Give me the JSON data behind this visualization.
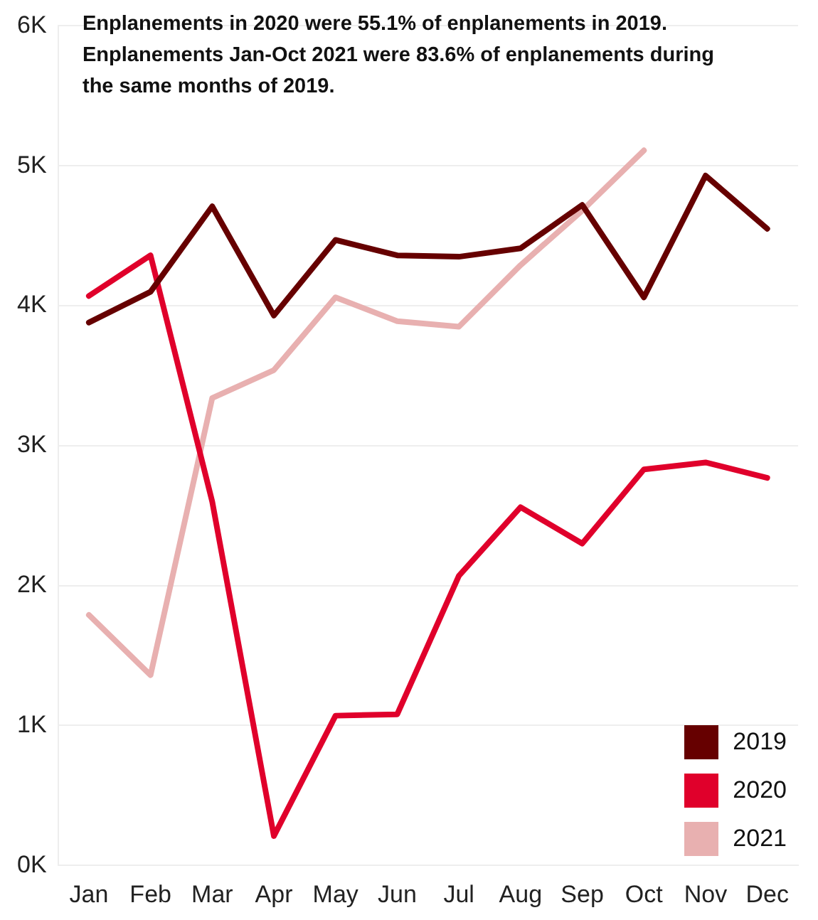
{
  "chart_data": {
    "type": "line",
    "title": "Enplanements in 2020 were 55.1% of enplanements in 2019. Enplanements Jan-Oct 2021 were 83.6% of enplanements during the same months of 2019.",
    "categories": [
      "Jan",
      "Feb",
      "Mar",
      "Apr",
      "May",
      "Jun",
      "Jul",
      "Aug",
      "Sep",
      "Oct",
      "Nov",
      "Dec"
    ],
    "series": [
      {
        "name": "2019",
        "color": "#660000",
        "values": [
          3880,
          4100,
          4710,
          3930,
          4470,
          4360,
          4350,
          4410,
          4720,
          4060,
          4930,
          4550
        ]
      },
      {
        "name": "2020",
        "color": "#e0002b",
        "values": [
          4070,
          4360,
          2600,
          210,
          1070,
          1080,
          2070,
          2560,
          2300,
          2830,
          2880,
          2770
        ]
      },
      {
        "name": "2021",
        "color": "#e8b0b0",
        "values": [
          1790,
          1360,
          3340,
          3540,
          4060,
          3890,
          3850,
          4290,
          4680,
          5110,
          null,
          null
        ]
      }
    ],
    "ylim": [
      0,
      6000
    ],
    "yticks": [
      {
        "value": 0,
        "label": "0K"
      },
      {
        "value": 1000,
        "label": "1K"
      },
      {
        "value": 2000,
        "label": "2K"
      },
      {
        "value": 3000,
        "label": "3K"
      },
      {
        "value": 4000,
        "label": "4K"
      },
      {
        "value": 5000,
        "label": "5K"
      },
      {
        "value": 6000,
        "label": "6K"
      }
    ],
    "grid": "y",
    "legend": "bottom right",
    "marker": "none",
    "line_style": "solid"
  }
}
